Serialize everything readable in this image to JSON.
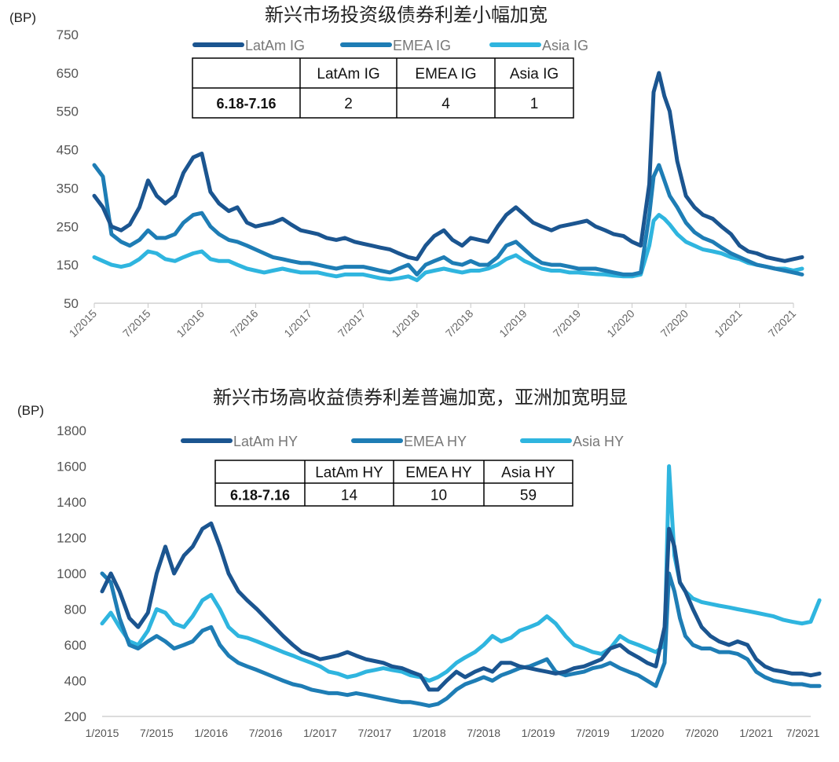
{
  "colors": {
    "latam": "#1B5590",
    "emea": "#1E7DB5",
    "asia": "#2FB5DF"
  },
  "chart_data": [
    {
      "type": "line",
      "title": "新兴市场投资级债券利差小幅加宽",
      "unit_label": "(BP)",
      "x_ticks": [
        "1/2015",
        "7/2015",
        "1/2016",
        "7/2016",
        "1/2017",
        "7/2017",
        "1/2018",
        "7/2018",
        "1/2019",
        "7/2019",
        "1/2020",
        "7/2020",
        "1/2021",
        "7/2021"
      ],
      "y_ticks": [
        "750",
        "650",
        "550",
        "450",
        "350",
        "250",
        "150",
        "50"
      ],
      "ylim": [
        50,
        750
      ],
      "legend": [
        "LatAm IG",
        "EMEA IG",
        "Asia IG"
      ],
      "x": [
        2015.0,
        2015.08,
        2015.16,
        2015.25,
        2015.33,
        2015.42,
        2015.5,
        2015.58,
        2015.66,
        2015.75,
        2015.83,
        2015.92,
        2016.0,
        2016.08,
        2016.16,
        2016.25,
        2016.33,
        2016.42,
        2016.5,
        2016.58,
        2016.66,
        2016.75,
        2016.83,
        2016.92,
        2017.0,
        2017.08,
        2017.16,
        2017.25,
        2017.33,
        2017.42,
        2017.5,
        2017.58,
        2017.66,
        2017.75,
        2017.83,
        2017.92,
        2018.0,
        2018.08,
        2018.16,
        2018.25,
        2018.33,
        2018.42,
        2018.5,
        2018.58,
        2018.66,
        2018.75,
        2018.83,
        2018.92,
        2019.0,
        2019.08,
        2019.16,
        2019.25,
        2019.33,
        2019.42,
        2019.5,
        2019.58,
        2019.66,
        2019.75,
        2019.83,
        2019.92,
        2020.0,
        2020.08,
        2020.16,
        2020.2,
        2020.25,
        2020.3,
        2020.35,
        2020.42,
        2020.5,
        2020.58,
        2020.66,
        2020.75,
        2020.83,
        2020.92,
        2021.0,
        2021.08,
        2021.16,
        2021.25,
        2021.33,
        2021.42,
        2021.5,
        2021.58
      ],
      "series": [
        {
          "name": "LatAm IG",
          "values": [
            330,
            300,
            250,
            240,
            255,
            300,
            370,
            330,
            310,
            330,
            390,
            430,
            440,
            340,
            310,
            290,
            300,
            260,
            250,
            255,
            260,
            270,
            255,
            240,
            235,
            230,
            220,
            215,
            220,
            210,
            205,
            200,
            195,
            190,
            180,
            170,
            165,
            200,
            225,
            240,
            215,
            200,
            220,
            215,
            210,
            250,
            280,
            300,
            280,
            260,
            250,
            240,
            250,
            255,
            260,
            265,
            250,
            240,
            230,
            225,
            210,
            200,
            360,
            600,
            650,
            590,
            550,
            420,
            330,
            300,
            280,
            270,
            250,
            230,
            200,
            185,
            180,
            170,
            165,
            160,
            165,
            170
          ]
        },
        {
          "name": "EMEA IG",
          "values": [
            410,
            380,
            230,
            210,
            200,
            215,
            240,
            220,
            220,
            230,
            260,
            280,
            285,
            250,
            230,
            215,
            210,
            200,
            190,
            180,
            170,
            165,
            160,
            155,
            155,
            150,
            145,
            140,
            145,
            145,
            145,
            140,
            135,
            130,
            140,
            150,
            125,
            150,
            160,
            170,
            155,
            150,
            160,
            150,
            150,
            170,
            200,
            210,
            190,
            170,
            155,
            150,
            150,
            145,
            140,
            140,
            140,
            135,
            130,
            125,
            125,
            130,
            280,
            380,
            410,
            370,
            330,
            300,
            260,
            235,
            220,
            210,
            195,
            180,
            170,
            160,
            150,
            145,
            140,
            135,
            130,
            125
          ]
        },
        {
          "name": "Asia IG",
          "values": [
            170,
            160,
            150,
            145,
            150,
            165,
            185,
            180,
            165,
            160,
            170,
            180,
            185,
            165,
            160,
            160,
            150,
            140,
            135,
            130,
            135,
            140,
            135,
            130,
            130,
            130,
            125,
            120,
            125,
            125,
            125,
            120,
            115,
            112,
            115,
            120,
            110,
            130,
            135,
            140,
            135,
            130,
            135,
            135,
            140,
            150,
            165,
            175,
            160,
            150,
            140,
            135,
            135,
            130,
            130,
            128,
            126,
            125,
            122,
            120,
            120,
            125,
            200,
            265,
            280,
            270,
            255,
            230,
            210,
            200,
            190,
            185,
            180,
            170,
            165,
            155,
            150,
            145,
            140,
            140,
            135,
            140
          ]
        }
      ]
    },
    {
      "type": "line",
      "title": "新兴市场高收益债券利差普遍加宽，亚洲加宽明显",
      "unit_label": "(BP)",
      "x_ticks": [
        "1/2015",
        "7/2015",
        "1/2016",
        "7/2016",
        "1/2017",
        "7/2017",
        "1/2018",
        "7/2018",
        "1/2019",
        "7/2019",
        "1/2020",
        "7/2020",
        "1/2021",
        "7/2021"
      ],
      "y_ticks": [
        "1800",
        "1600",
        "1400",
        "1200",
        "1000",
        "800",
        "600",
        "400",
        "200"
      ],
      "ylim": [
        200,
        1800
      ],
      "legend": [
        "LatAm HY",
        "EMEA HY",
        "Asia HY"
      ],
      "x": [
        2015.0,
        2015.08,
        2015.16,
        2015.25,
        2015.33,
        2015.42,
        2015.5,
        2015.58,
        2015.66,
        2015.75,
        2015.83,
        2015.92,
        2016.0,
        2016.08,
        2016.16,
        2016.25,
        2016.33,
        2016.42,
        2016.5,
        2016.58,
        2016.66,
        2016.75,
        2016.83,
        2016.92,
        2017.0,
        2017.08,
        2017.16,
        2017.25,
        2017.33,
        2017.42,
        2017.5,
        2017.58,
        2017.66,
        2017.75,
        2017.83,
        2017.92,
        2018.0,
        2018.08,
        2018.16,
        2018.25,
        2018.33,
        2018.42,
        2018.5,
        2018.58,
        2018.66,
        2018.75,
        2018.83,
        2018.92,
        2019.0,
        2019.08,
        2019.16,
        2019.25,
        2019.33,
        2019.42,
        2019.5,
        2019.58,
        2019.66,
        2019.75,
        2019.83,
        2019.92,
        2020.0,
        2020.08,
        2020.16,
        2020.2,
        2020.25,
        2020.3,
        2020.35,
        2020.42,
        2020.5,
        2020.58,
        2020.66,
        2020.75,
        2020.83,
        2020.92,
        2021.0,
        2021.08,
        2021.16,
        2021.25,
        2021.33,
        2021.42,
        2021.5,
        2021.58
      ],
      "series": [
        {
          "name": "LatAm HY",
          "values": [
            900,
            1000,
            900,
            750,
            700,
            780,
            1000,
            1150,
            1000,
            1100,
            1150,
            1250,
            1280,
            1150,
            1000,
            900,
            850,
            800,
            750,
            700,
            650,
            600,
            560,
            540,
            520,
            530,
            540,
            560,
            540,
            520,
            510,
            500,
            480,
            470,
            450,
            430,
            350,
            350,
            400,
            450,
            420,
            450,
            470,
            450,
            500,
            500,
            480,
            470,
            460,
            450,
            440,
            450,
            470,
            480,
            500,
            520,
            580,
            600,
            560,
            530,
            500,
            480,
            700,
            1250,
            1150,
            950,
            900,
            800,
            700,
            650,
            620,
            600,
            620,
            600,
            520,
            480,
            460,
            450,
            440,
            440,
            430,
            440
          ]
        },
        {
          "name": "EMEA HY",
          "values": [
            1000,
            950,
            750,
            600,
            580,
            620,
            650,
            620,
            580,
            600,
            620,
            680,
            700,
            600,
            540,
            500,
            480,
            460,
            440,
            420,
            400,
            380,
            370,
            350,
            340,
            330,
            330,
            320,
            330,
            320,
            310,
            300,
            290,
            280,
            280,
            270,
            260,
            270,
            300,
            350,
            380,
            400,
            420,
            400,
            430,
            450,
            470,
            480,
            500,
            520,
            450,
            430,
            440,
            450,
            470,
            480,
            500,
            470,
            450,
            430,
            400,
            370,
            500,
            1000,
            900,
            750,
            650,
            600,
            580,
            580,
            560,
            560,
            550,
            520,
            450,
            420,
            400,
            390,
            380,
            380,
            370,
            370
          ]
        },
        {
          "name": "Asia HY",
          "values": [
            720,
            780,
            700,
            620,
            600,
            680,
            800,
            780,
            720,
            700,
            760,
            850,
            880,
            800,
            700,
            650,
            640,
            620,
            600,
            580,
            560,
            540,
            520,
            500,
            480,
            450,
            440,
            420,
            430,
            450,
            460,
            470,
            460,
            450,
            430,
            420,
            400,
            420,
            450,
            500,
            530,
            560,
            600,
            650,
            620,
            640,
            680,
            700,
            720,
            760,
            720,
            650,
            600,
            580,
            560,
            550,
            580,
            650,
            620,
            600,
            580,
            560,
            600,
            1600,
            1100,
            950,
            900,
            860,
            840,
            830,
            820,
            810,
            800,
            790,
            780,
            770,
            760,
            740,
            730,
            720,
            730,
            850
          ]
        }
      ]
    }
  ],
  "tables": [
    {
      "headers": [
        "",
        "LatAm IG",
        "EMEA IG",
        "Asia IG"
      ],
      "row_label": "6.18-7.16",
      "row_values": [
        "2",
        "4",
        "1"
      ]
    },
    {
      "headers": [
        "",
        "LatAm HY",
        "EMEA HY",
        "Asia HY"
      ],
      "row_label": "6.18-7.16",
      "row_values": [
        "14",
        "10",
        "59"
      ]
    }
  ]
}
